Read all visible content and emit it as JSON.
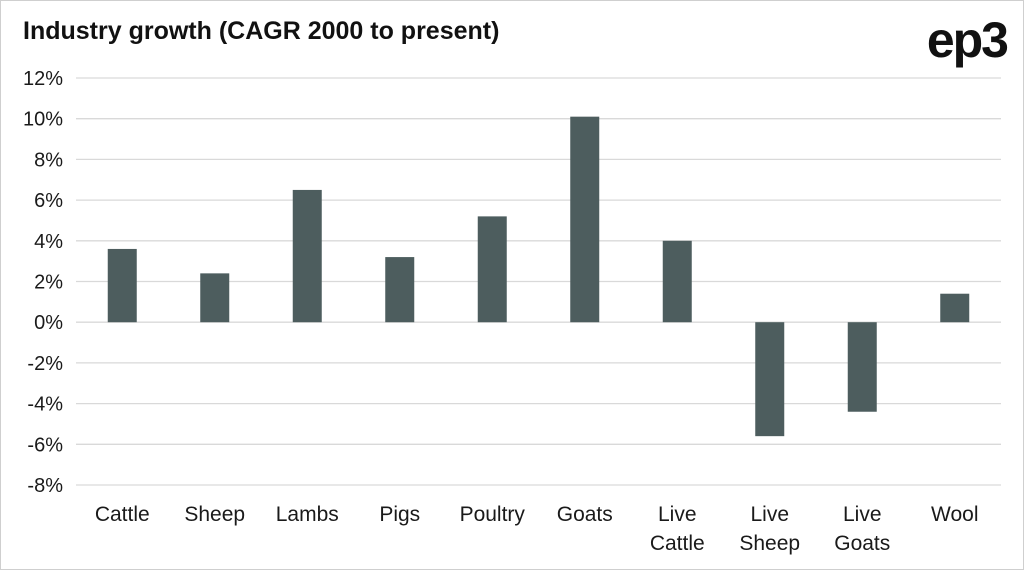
{
  "chart_data": {
    "type": "bar",
    "title": "Industry growth (CAGR 2000 to present)",
    "brand_logo": "ep3",
    "categories": [
      [
        "Cattle"
      ],
      [
        "Sheep"
      ],
      [
        "Lambs"
      ],
      [
        "Pigs"
      ],
      [
        "Poultry"
      ],
      [
        "Goats"
      ],
      [
        "Live",
        "Cattle"
      ],
      [
        "Live",
        "Sheep"
      ],
      [
        "Live",
        "Goats"
      ],
      [
        "Wool"
      ]
    ],
    "values": [
      3.6,
      2.4,
      6.5,
      3.2,
      5.2,
      10.1,
      4.0,
      -5.6,
      -4.4,
      1.4
    ],
    "ylim": [
      -8,
      12
    ],
    "ytick_step": 2,
    "ytick_labels": [
      "12%",
      "10%",
      "8%",
      "6%",
      "4%",
      "2%",
      "0%",
      "-2%",
      "-4%",
      "-6%",
      "-8%"
    ],
    "grid": true,
    "legend": "none",
    "colors": {
      "bar": "#4d5d5e",
      "grid": "#d9d9d9",
      "text": "#1a1a1a"
    }
  }
}
